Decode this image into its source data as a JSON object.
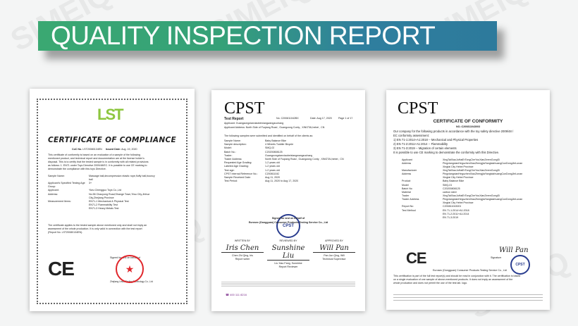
{
  "watermark": "SIMEIQ",
  "banner": {
    "title": "QUALITY INSPECTION REPORT",
    "colors": {
      "start": "#3aa872",
      "end": "#2d7a9c"
    }
  },
  "cert1": {
    "logo": "LST",
    "title": "CERTIFICATE OF COMPLIANCE",
    "coc_label": "CoC No.",
    "coc_no": "LST20080134EN",
    "issued_label": "Issued Date:",
    "issued": "Aug. 19, 2020",
    "intro": [
      "This certificate of conformity is based on an evaluation of a sample of the following",
      "mentioned product, and technical report and documentation are at the license holder's",
      "disposal. This is to certify that the tested sample is in conformity with all related provisions",
      "as follows: 1. EN71 under Toys Directive 2009/48/EC. It is possible to use CE marking to",
      "demonstrate the compliance with this toys Directive."
    ],
    "fields": [
      {
        "k": "Sample Name:",
        "v": [
          "Massage ball,decompression elastic rope,fluffy ball,bouncy",
          "ball"
        ]
      },
      {
        "k": "Applicant's Specified Testing Age Group:",
        "v": [
          "3+"
        ]
      },
      {
        "k": "Applicant:",
        "v": [
          "Yiwu Chengguo Toys Co.,Ltd"
        ]
      },
      {
        "k": "Address:",
        "v": [
          "No.56 Chaoyong Road,Shange Town,Yiwu City,Jinhua",
          "City,Zhejiang Province"
        ]
      },
      {
        "k": "Measurement Items:",
        "v": [
          "EN71-1 Mechanical & Physical Test",
          "EN71-2 Flammability Test",
          "EN71-3 Heavy Metals Test"
        ]
      }
    ],
    "footer": [
      "The certificate applies to the tested sample above mentioned only and shall not imply an",
      "assessment of the whole production. It is only valid in connection with the test report",
      "(Report No. LST20080134EN)."
    ],
    "signed": "Signed for and on behalf of",
    "company": "Zhejiang Leste Testing Technology Co., Ltd",
    "ce": "CE"
  },
  "cert2": {
    "logo": "CPST",
    "heading": "Test Report",
    "no": "No. C200811042BX",
    "date": "Date: Aug 17, 2020",
    "page": "Page 1 of 17",
    "applicant": "Applicant: Guangzongxianxiaobeixiangwangzuchang",
    "address": "Applicant Address: North Side of Fuqiang Road , Guangzong Conty , XINGTAI,hebei , CN",
    "intro": "The following samples were submitted and identified on behalf of the clients as:",
    "fields": [
      {
        "k": "Sample Name:",
        "v": "Baby Balance Bike"
      },
      {
        "k": "Sample description:",
        "v": "4 Wheels Toddler Bicycle"
      },
      {
        "k": "Model:",
        "v": "SMQ-02"
      },
      {
        "k": "Batch No.:",
        "v": "C20200808125"
      },
      {
        "k": "Trader:",
        "v": "Guangzongxianxiaobeixiangwangzuchang"
      },
      {
        "k": "Trader Address:",
        "v": "North Side of Fuqiang Road , Guangzong Conty , XINGTAI,hebei , CN"
      },
      {
        "k": "Requested Age Grading:",
        "v": "1-2 years old"
      },
      {
        "k": "Labeled Age Grading:",
        "v": "1-2 years old"
      },
      {
        "k": "Test age:",
        "v": "1-2 years old"
      },
      {
        "k": "CPST Internal Reference No.:",
        "v": "C200811042"
      },
      {
        "k": "Sample Received Date:",
        "v": "Aug 11, 2020"
      },
      {
        "k": "Test Period:",
        "v": "Aug 11, 2020 to Aug 17, 2020"
      }
    ],
    "signed": "Signed for and on behalf of",
    "company": "Eurosec (Dongguan) Consumer Products Testing Service Co., Ltd",
    "signers": [
      {
        "role": "WRITTEN BY",
        "sig": "Iris Chen",
        "name": "Chen Zhi Qing, Iris",
        "title": "Report writer"
      },
      {
        "role": "REVIEWED BY",
        "sig": "Sunshine Liu",
        "name": "Liu Xiao Fang, Sunshine",
        "title": "Report Reviewer"
      },
      {
        "role": "APPROVED BY",
        "sig": "Will Pan",
        "name": "Pan Jun Qing, Will",
        "title": "Technical Supervisor"
      }
    ],
    "phone": "400 111 8216"
  },
  "cert3": {
    "logo": "CPST",
    "title": "CERTIFICATE OF CONFORMITY",
    "no": "NO.:C200811043003",
    "intro": [
      "Our company for the following products in accordance with the toy safety directive 2009/48 /",
      "EC conformity assessment:",
      "1) EN 71-1:2014+A1:2018 -- Mechanical and Physical Properties",
      "2) EN 71-2:2011+A1:2014 -- Flammability",
      "3) EN 71-3:2019 -- Migration of certain elements",
      "It is possible to use CE marking to demonstrate the conformity with this Directive."
    ],
    "fields": [
      {
        "k": "Applicant",
        "v": [
          "XingTaiXiaoJuHaiErTongCheYouXianZerenGongSi"
        ]
      },
      {
        "k": "Address",
        "v": [
          "PingxiangxianHeguzhenXiaoZhengjiaYangtaizhuangCunDongJieLunan",
          "Xingtai City Hebei Province"
        ]
      },
      {
        "k": "Manufacturer",
        "v": [
          "XingTaiXiaoJuHaiErTongCheYouXianZerenGongSi"
        ]
      },
      {
        "k": "Address",
        "v": [
          "PingxiangxianHeguzhenXiaoZhengjiaYangtaizhuangCunDongJieLunan",
          "Xingtai City Hebei Province"
        ]
      },
      {
        "k": "Product",
        "v": [
          "Baby Balance Bike"
        ]
      },
      {
        "k": "Model",
        "v": [
          "SMQ-01"
        ]
      },
      {
        "k": "Batch No",
        "v": [
          "C20200808125"
        ]
      },
      {
        "k": "Material",
        "v": [
          "carbon steel"
        ]
      },
      {
        "k": "Trader",
        "v": [
          "XingTaiXiaoJuHaiErTongCheYouXianZerenGongSi"
        ]
      },
      {
        "k": "Trader Address",
        "v": [
          "PingxiangxianHeguzhenXiaoZhengjiaYangtaizhuangCunDongJieLunan",
          "Xingtai City Hebei Province"
        ]
      },
      {
        "k": "Report No",
        "v": [
          "C200811043001"
        ]
      },
      {
        "k": "Test Method",
        "v": [
          "EN 71-1:2014+A1:2018",
          "EN 71-2:2011+A1:2014",
          "EN 71-3:2019"
        ]
      }
    ],
    "sig": "Will Pan",
    "signature_label": "Signature",
    "company": "Eurosec (Dongguan) Consumer Products Testing Service Co., Ltd",
    "footer": [
      "This certification is part of the full test report(s) and should be read in conjunction with it. The certification is based",
      "on a single evaluation of one sample of above-mentioned products. It does not imply an assessment of the",
      "whole production and does not permit the use of the test lab. logo."
    ],
    "ce": "CE"
  }
}
